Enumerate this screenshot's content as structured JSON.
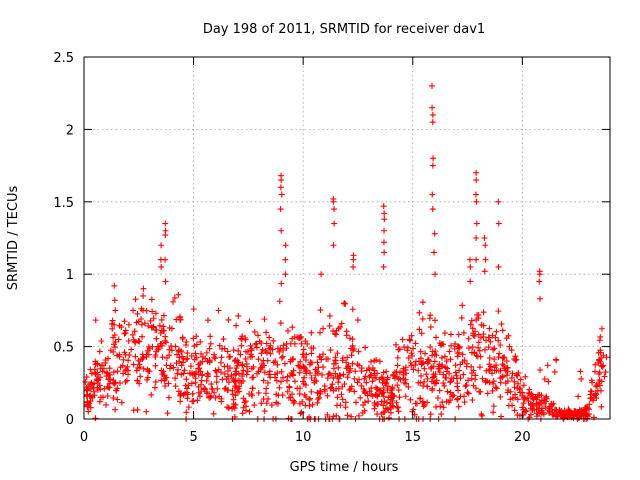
{
  "chart_data": {
    "type": "scatter",
    "title": "Day 198 of 2011, SRMTID for receiver dav1",
    "xlabel": "GPS time / hours",
    "ylabel": "SRMTID / TECUs",
    "xlim": [
      0,
      24
    ],
    "ylim": [
      0,
      2.5
    ],
    "xticks": [
      0,
      5,
      10,
      15,
      20
    ],
    "yticks": [
      0,
      0.5,
      1,
      1.5,
      2,
      2.5
    ],
    "xtick_labels": [
      "0",
      "5",
      "10",
      "15",
      "20"
    ],
    "ytick_labels": [
      "0",
      "0.5",
      "1",
      "1.5",
      "2",
      "2.5"
    ],
    "grid": true,
    "marker": "+",
    "series_color": "#ff0000",
    "envelope": {
      "hours": [
        0,
        0.5,
        1,
        1.5,
        2,
        2.5,
        3,
        3.5,
        4,
        4.5,
        5,
        5.5,
        6,
        6.5,
        7,
        7.5,
        8,
        8.5,
        9,
        9.5,
        10,
        10.5,
        11,
        11.5,
        12,
        12.5,
        13,
        13.5,
        14,
        14.5,
        15,
        15.5,
        16,
        16.5,
        17,
        17.5,
        18,
        18.5,
        19,
        19.5,
        20,
        20.5,
        21,
        21.5,
        22,
        22.5,
        23,
        23.5,
        24
      ],
      "typical": [
        0.15,
        0.25,
        0.3,
        0.35,
        0.4,
        0.45,
        0.5,
        0.5,
        0.45,
        0.4,
        0.35,
        0.3,
        0.3,
        0.25,
        0.3,
        0.4,
        0.35,
        0.35,
        0.45,
        0.35,
        0.3,
        0.25,
        0.35,
        0.3,
        0.35,
        0.3,
        0.2,
        0.15,
        0.15,
        0.3,
        0.35,
        0.3,
        0.35,
        0.3,
        0.35,
        0.4,
        0.45,
        0.4,
        0.35,
        0.3,
        0.15,
        0.12,
        0.1,
        0.05,
        0.03,
        0.03,
        0.05,
        0.3,
        0.35
      ],
      "spread": [
        0.1,
        0.15,
        0.2,
        0.25,
        0.25,
        0.3,
        0.35,
        0.35,
        0.3,
        0.3,
        0.25,
        0.2,
        0.2,
        0.2,
        0.25,
        0.3,
        0.25,
        0.25,
        0.35,
        0.3,
        0.25,
        0.25,
        0.35,
        0.3,
        0.35,
        0.3,
        0.2,
        0.15,
        0.15,
        0.25,
        0.3,
        0.3,
        0.3,
        0.25,
        0.3,
        0.35,
        0.35,
        0.3,
        0.3,
        0.25,
        0.12,
        0.1,
        0.08,
        0.04,
        0.03,
        0.03,
        0.05,
        0.25,
        0.3
      ]
    },
    "spikes": [
      {
        "hour": 1.4,
        "values": [
          0.65,
          0.75,
          0.82,
          0.92
        ]
      },
      {
        "hour": 2.7,
        "values": [
          0.75,
          0.85,
          0.9
        ]
      },
      {
        "hour": 3.5,
        "values": [
          1.05,
          1.1,
          1.2
        ]
      },
      {
        "hour": 3.7,
        "values": [
          0.95,
          1.1,
          1.27,
          1.3,
          1.35
        ]
      },
      {
        "hour": 9.0,
        "values": [
          1.3,
          1.45,
          1.55,
          1.6,
          1.65,
          1.68
        ]
      },
      {
        "hour": 9.2,
        "values": [
          1.0,
          1.1,
          1.2
        ]
      },
      {
        "hour": 10.8,
        "values": [
          1.0
        ]
      },
      {
        "hour": 11.4,
        "values": [
          1.2,
          1.35,
          1.45,
          1.5,
          1.52
        ]
      },
      {
        "hour": 12.3,
        "values": [
          1.05,
          1.1,
          1.13
        ]
      },
      {
        "hour": 13.7,
        "values": [
          1.05,
          1.15,
          1.22,
          1.3,
          1.38,
          1.42,
          1.47
        ]
      },
      {
        "hour": 15.9,
        "values": [
          1.45,
          1.55,
          1.75,
          1.8,
          2.05,
          2.1,
          2.15,
          2.3
        ]
      },
      {
        "hour": 16.0,
        "values": [
          1.0,
          1.15,
          1.28
        ]
      },
      {
        "hour": 17.6,
        "values": [
          0.95,
          1.05,
          1.1
        ]
      },
      {
        "hour": 17.9,
        "values": [
          1.1,
          1.25,
          1.35,
          1.5,
          1.55,
          1.65,
          1.7
        ]
      },
      {
        "hour": 18.3,
        "values": [
          1.02,
          1.1,
          1.2,
          1.25
        ]
      },
      {
        "hour": 18.9,
        "values": [
          1.05,
          1.35,
          1.5
        ]
      },
      {
        "hour": 20.8,
        "values": [
          0.83,
          0.95,
          1.0,
          1.02
        ]
      }
    ]
  }
}
